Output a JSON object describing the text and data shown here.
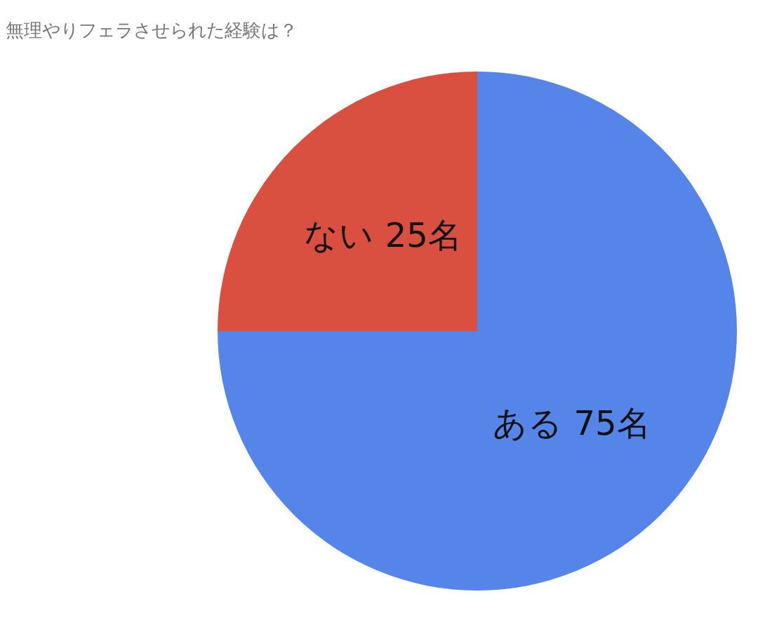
{
  "chart_data": {
    "type": "pie",
    "title": "無理やりフェラさせられた経験は？",
    "categories": [
      "ある",
      "ない"
    ],
    "values": [
      75,
      25
    ],
    "value_labels": [
      "75名",
      "25名"
    ],
    "colors": [
      "#5585e8",
      "#d95040"
    ],
    "legend": false
  }
}
